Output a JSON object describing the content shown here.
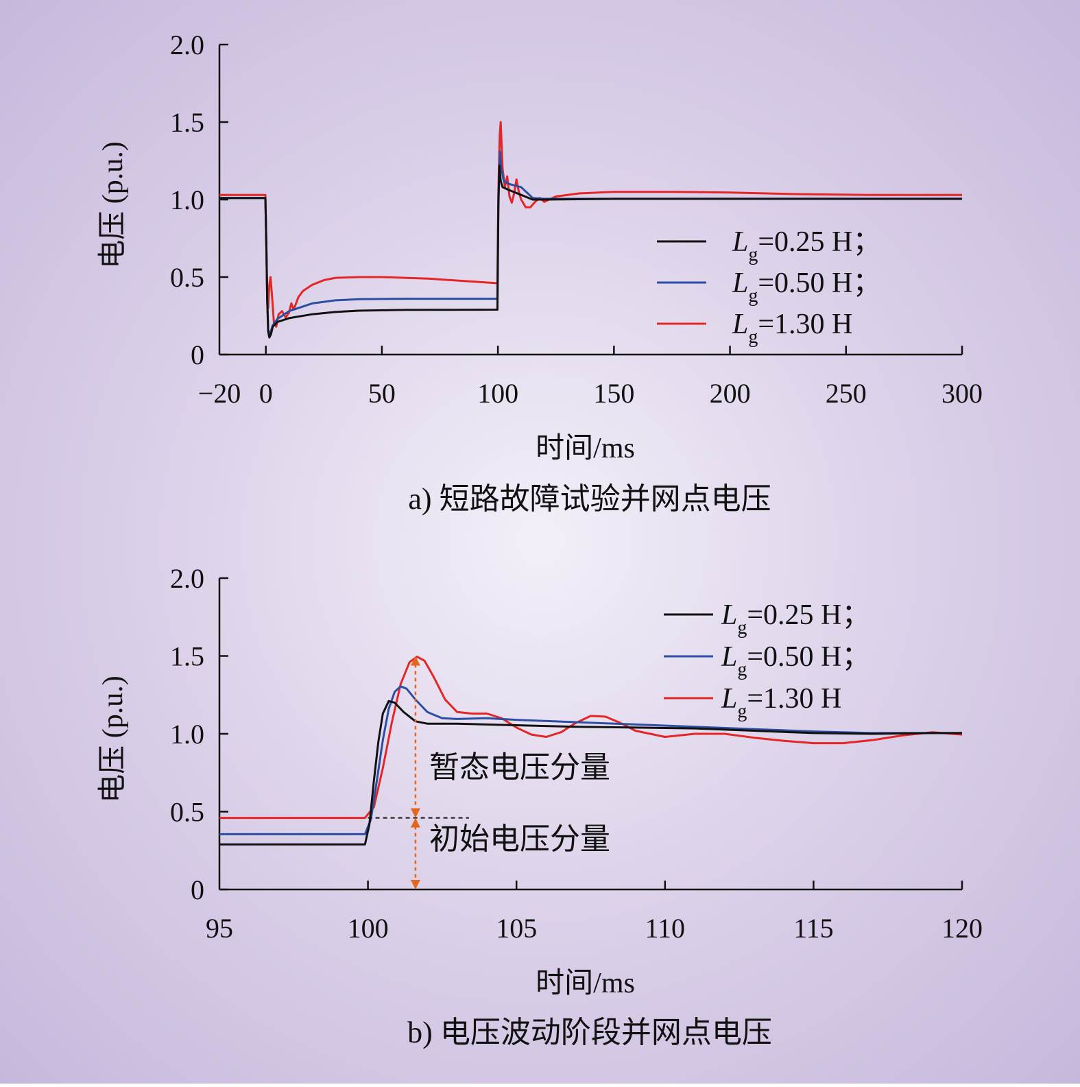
{
  "chart_data": [
    {
      "id": "a",
      "type": "line",
      "caption": "a) 短路故障试验并网点电压",
      "xlabel": "时间/ms",
      "ylabel": "电压 (p.u.)",
      "xlim": [
        -20,
        300
      ],
      "ylim": [
        0,
        2.0
      ],
      "x_ticks": [
        -20,
        0,
        50,
        100,
        150,
        200,
        250,
        300
      ],
      "x_tick_labels": [
        "−20",
        "0",
        "50",
        "100",
        "150",
        "200",
        "250",
        "300"
      ],
      "y_ticks": [
        0,
        0.5,
        1.0,
        1.5,
        2.0
      ],
      "y_tick_labels": [
        "0",
        "0.5",
        "1.0",
        "1.5",
        "2.0"
      ],
      "legend_position": "right",
      "series": [
        {
          "legend_prefix": "L",
          "legend_sub": "g",
          "legend_suffix": "=0.25 H；",
          "color": "#111111",
          "points": [
            [
              -20,
              1.01
            ],
            [
              -0.2,
              1.01
            ],
            [
              0.2,
              0.72
            ],
            [
              0.6,
              0.35
            ],
            [
              1,
              0.15
            ],
            [
              1.5,
              0.11
            ],
            [
              2.2,
              0.13
            ],
            [
              3,
              0.18
            ],
            [
              5,
              0.21
            ],
            [
              10,
              0.235
            ],
            [
              20,
              0.26
            ],
            [
              30,
              0.275
            ],
            [
              40,
              0.283
            ],
            [
              60,
              0.288
            ],
            [
              80,
              0.289
            ],
            [
              99.8,
              0.29
            ],
            [
              100.2,
              0.95
            ],
            [
              100.6,
              1.22
            ],
            [
              101.2,
              1.12
            ],
            [
              102,
              1.08
            ],
            [
              105,
              1.06
            ],
            [
              110,
              1.03
            ],
            [
              115,
              1.0
            ],
            [
              120,
              1.0
            ],
            [
              150,
              1.005
            ],
            [
              200,
              1.005
            ],
            [
              250,
              1.005
            ],
            [
              300,
              1.005
            ]
          ]
        },
        {
          "legend_prefix": "L",
          "legend_sub": "g",
          "legend_suffix": "=0.50 H；",
          "color": "#2c4ea0",
          "points": [
            [
              -20,
              1.01
            ],
            [
              -0.2,
              1.01
            ],
            [
              0.2,
              0.7
            ],
            [
              0.6,
              0.35
            ],
            [
              1,
              0.16
            ],
            [
              1.5,
              0.13
            ],
            [
              2.2,
              0.15
            ],
            [
              3,
              0.19
            ],
            [
              5,
              0.23
            ],
            [
              10,
              0.28
            ],
            [
              20,
              0.33
            ],
            [
              30,
              0.35
            ],
            [
              40,
              0.357
            ],
            [
              60,
              0.36
            ],
            [
              80,
              0.36
            ],
            [
              99.8,
              0.36
            ],
            [
              100.2,
              1.0
            ],
            [
              100.8,
              1.31
            ],
            [
              101.5,
              1.2
            ],
            [
              102.5,
              1.12
            ],
            [
              105,
              1.1
            ],
            [
              110,
              1.08
            ],
            [
              115,
              1.01
            ],
            [
              120,
              1.005
            ],
            [
              150,
              1.005
            ],
            [
              200,
              1.005
            ],
            [
              250,
              1.005
            ],
            [
              300,
              1.005
            ]
          ]
        },
        {
          "legend_prefix": "L",
          "legend_sub": "g",
          "legend_suffix": "=1.30 H",
          "color": "#e32626",
          "points": [
            [
              -20,
              1.03
            ],
            [
              -0.2,
              1.03
            ],
            [
              0.2,
              0.7
            ],
            [
              0.6,
              0.36
            ],
            [
              1,
              0.3
            ],
            [
              1.5,
              0.45
            ],
            [
              2,
              0.5
            ],
            [
              2.8,
              0.35
            ],
            [
              3.5,
              0.2
            ],
            [
              4.5,
              0.18
            ],
            [
              5.5,
              0.26
            ],
            [
              7,
              0.28
            ],
            [
              8.5,
              0.24
            ],
            [
              10,
              0.27
            ],
            [
              11,
              0.33
            ],
            [
              12,
              0.29
            ],
            [
              14,
              0.37
            ],
            [
              16,
              0.41
            ],
            [
              20,
              0.45
            ],
            [
              25,
              0.48
            ],
            [
              30,
              0.495
            ],
            [
              40,
              0.5
            ],
            [
              50,
              0.5
            ],
            [
              70,
              0.49
            ],
            [
              90,
              0.47
            ],
            [
              99.8,
              0.46
            ],
            [
              100.2,
              1.05
            ],
            [
              100.8,
              1.42
            ],
            [
              101.2,
              1.5
            ],
            [
              102,
              1.2
            ],
            [
              103,
              1.08
            ],
            [
              104,
              1.15
            ],
            [
              105,
              1.02
            ],
            [
              106,
              0.98
            ],
            [
              107,
              1.04
            ],
            [
              108,
              1.13
            ],
            [
              109,
              1.05
            ],
            [
              110,
              1.0
            ],
            [
              112,
              0.95
            ],
            [
              114,
              0.95
            ],
            [
              116,
              0.985
            ],
            [
              118,
              1.01
            ],
            [
              120,
              0.985
            ],
            [
              122,
              1.0
            ],
            [
              125,
              1.02
            ],
            [
              135,
              1.04
            ],
            [
              150,
              1.05
            ],
            [
              175,
              1.05
            ],
            [
              200,
              1.045
            ],
            [
              230,
              1.035
            ],
            [
              260,
              1.03
            ],
            [
              300,
              1.03
            ]
          ]
        }
      ]
    },
    {
      "id": "b",
      "type": "line",
      "caption": "b) 电压波动阶段并网点电压",
      "xlabel": "时间/ms",
      "ylabel": "电压 (p.u.)",
      "xlim": [
        95,
        120
      ],
      "ylim": [
        0,
        2.0
      ],
      "x_ticks": [
        95,
        100,
        105,
        110,
        115,
        120
      ],
      "x_tick_labels": [
        "95",
        "100",
        "105",
        "110",
        "115",
        "120"
      ],
      "y_ticks": [
        0,
        0.5,
        1.0,
        1.5,
        2.0
      ],
      "y_tick_labels": [
        "0",
        "0.5",
        "1.0",
        "1.5",
        "2.0"
      ],
      "legend_position": "top-right",
      "annotations": {
        "transient_label": "暂态电压分量",
        "initial_label": "初始电压分量",
        "arrow_x": 101.6,
        "arrow_color": "#e2661e",
        "dashed_level": 0.46,
        "peak_level": 1.5
      },
      "series": [
        {
          "legend_prefix": "L",
          "legend_sub": "g",
          "legend_suffix": "=0.25 H；",
          "color": "#111111",
          "points": [
            [
              95,
              0.29
            ],
            [
              99.9,
              0.29
            ],
            [
              100.05,
              0.42
            ],
            [
              100.2,
              0.7
            ],
            [
              100.35,
              0.95
            ],
            [
              100.5,
              1.13
            ],
            [
              100.7,
              1.21
            ],
            [
              100.9,
              1.2
            ],
            [
              101.2,
              1.14
            ],
            [
              101.6,
              1.08
            ],
            [
              102,
              1.065
            ],
            [
              103,
              1.065
            ],
            [
              105,
              1.055
            ],
            [
              107,
              1.045
            ],
            [
              109,
              1.04
            ],
            [
              111,
              1.035
            ],
            [
              113,
              1.02
            ],
            [
              115,
              1.005
            ],
            [
              117,
              1.0
            ],
            [
              119,
              1.005
            ],
            [
              120,
              1.005
            ]
          ]
        },
        {
          "legend_prefix": "L",
          "legend_sub": "g",
          "legend_suffix": "=0.50 H；",
          "color": "#2c4ea0",
          "points": [
            [
              95,
              0.355
            ],
            [
              99.9,
              0.355
            ],
            [
              100.1,
              0.45
            ],
            [
              100.3,
              0.7
            ],
            [
              100.5,
              0.96
            ],
            [
              100.7,
              1.16
            ],
            [
              100.9,
              1.27
            ],
            [
              101.1,
              1.305
            ],
            [
              101.3,
              1.29
            ],
            [
              101.6,
              1.22
            ],
            [
              102,
              1.14
            ],
            [
              102.5,
              1.1
            ],
            [
              103,
              1.095
            ],
            [
              104,
              1.1
            ],
            [
              105,
              1.09
            ],
            [
              107,
              1.075
            ],
            [
              109,
              1.06
            ],
            [
              111,
              1.045
            ],
            [
              113,
              1.03
            ],
            [
              115,
              1.015
            ],
            [
              117,
              1.005
            ],
            [
              120,
              1.005
            ]
          ]
        },
        {
          "legend_prefix": "L",
          "legend_sub": "g",
          "legend_suffix": "=1.30 H",
          "color": "#e32626",
          "points": [
            [
              95,
              0.46
            ],
            [
              99.9,
              0.46
            ],
            [
              100.2,
              0.53
            ],
            [
              100.5,
              0.78
            ],
            [
              100.8,
              1.07
            ],
            [
              101.1,
              1.32
            ],
            [
              101.4,
              1.46
            ],
            [
              101.65,
              1.495
            ],
            [
              101.9,
              1.47
            ],
            [
              102.2,
              1.37
            ],
            [
              102.6,
              1.22
            ],
            [
              103,
              1.14
            ],
            [
              103.5,
              1.13
            ],
            [
              104,
              1.13
            ],
            [
              104.5,
              1.1
            ],
            [
              105,
              1.04
            ],
            [
              105.5,
              0.995
            ],
            [
              106,
              0.98
            ],
            [
              106.5,
              1.01
            ],
            [
              107,
              1.07
            ],
            [
              107.5,
              1.115
            ],
            [
              108,
              1.11
            ],
            [
              108.5,
              1.07
            ],
            [
              109,
              1.02
            ],
            [
              110,
              0.98
            ],
            [
              111,
              1.0
            ],
            [
              112,
              1.0
            ],
            [
              113,
              0.975
            ],
            [
              114,
              0.955
            ],
            [
              115,
              0.94
            ],
            [
              116,
              0.94
            ],
            [
              117,
              0.96
            ],
            [
              118,
              0.99
            ],
            [
              119,
              1.01
            ],
            [
              120,
              0.995
            ]
          ]
        }
      ]
    }
  ]
}
